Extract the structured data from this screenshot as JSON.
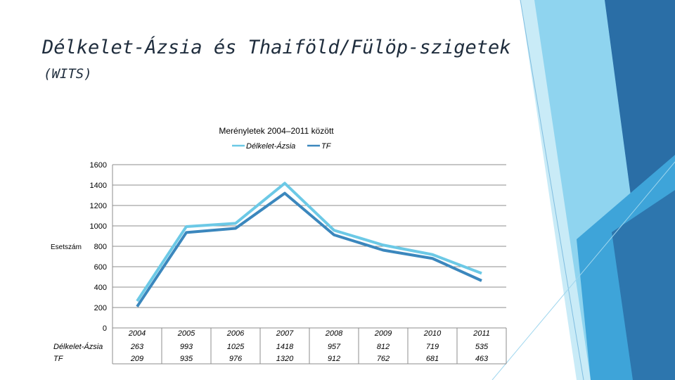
{
  "slide": {
    "title": "Délkelet-Ázsia és Thaiföld/Fülöp-szigetek",
    "subtitle": "(WITS)"
  },
  "colors": {
    "series_1": "#6cc9e6",
    "series_2": "#3b87bd",
    "deco_dark": "#2a6ea6",
    "deco_mid": "#3ea4d9",
    "deco_light": "#8fd4ef",
    "deco_pale": "#c9ebf7"
  },
  "chart_data": {
    "type": "line",
    "title": "Merényletek 2004–2011 között",
    "ylabel": "Esetszám",
    "xlabel": "",
    "ylim": [
      0,
      1600
    ],
    "yticks": [
      0,
      200,
      400,
      600,
      800,
      1000,
      1200,
      1400,
      1600
    ],
    "grid": true,
    "legend": "top",
    "data_table": true,
    "categories": [
      "2004",
      "2005",
      "2006",
      "2007",
      "2008",
      "2009",
      "2010",
      "2011"
    ],
    "series": [
      {
        "name": "Délkelet-Ázsia",
        "values": [
          263,
          993,
          1025,
          1418,
          957,
          812,
          719,
          535
        ]
      },
      {
        "name": "TF",
        "values": [
          209,
          935,
          976,
          1320,
          912,
          762,
          681,
          463
        ]
      }
    ]
  }
}
